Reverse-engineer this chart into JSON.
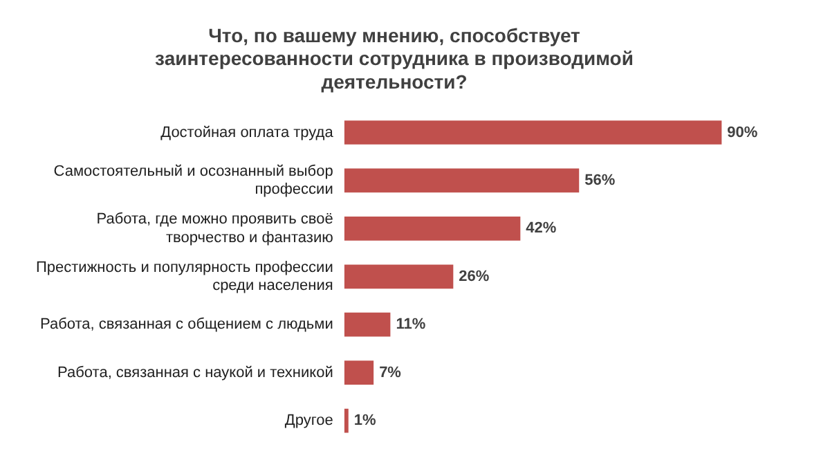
{
  "chart_data": {
    "type": "bar",
    "orientation": "horizontal",
    "title": "Что, по вашему мнению, способствует заинтересованности сотрудника в производимой деятельности?",
    "categories": [
      "Достойная оплата труда",
      "Самостоятельный и осознанный выбор профессии",
      "Работа, где можно проявить своё творчество и фантазию",
      "Престижность и популярность профессии среди населения",
      "Работа, связанная с общением с людьми",
      "Работа, связанная с наукой и техникой",
      "Другое"
    ],
    "values": [
      90,
      56,
      42,
      26,
      11,
      7,
      1
    ],
    "value_labels": [
      "90%",
      "56%",
      "42%",
      "26%",
      "11%",
      "7%",
      "1%"
    ],
    "color": "#c0504d",
    "tick_labels": "y"
  }
}
